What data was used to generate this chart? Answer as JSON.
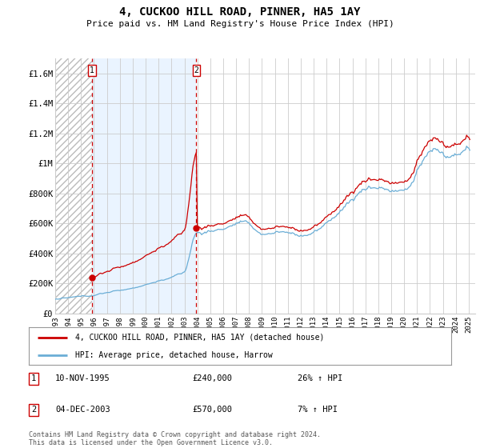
{
  "title": "4, CUCKOO HILL ROAD, PINNER, HA5 1AY",
  "subtitle": "Price paid vs. HM Land Registry's House Price Index (HPI)",
  "ylim": [
    0,
    1700000
  ],
  "yticks": [
    0,
    200000,
    400000,
    600000,
    800000,
    1000000,
    1200000,
    1400000,
    1600000
  ],
  "ytick_labels": [
    "£0",
    "£200K",
    "£400K",
    "£600K",
    "£800K",
    "£1M",
    "£1.2M",
    "£1.4M",
    "£1.6M"
  ],
  "xlim_start": 1993.0,
  "xlim_end": 2025.5,
  "sale1_date": 1995.86,
  "sale1_price": 240000,
  "sale1_label": "1",
  "sale1_text": "10-NOV-1995",
  "sale1_price_text": "£240,000",
  "sale1_hpi_text": "26% ↑ HPI",
  "sale2_date": 2003.92,
  "sale2_price": 570000,
  "sale2_label": "2",
  "sale2_text": "04-DEC-2003",
  "sale2_price_text": "£570,000",
  "sale2_hpi_text": "7% ↑ HPI",
  "hpi_color": "#6baed6",
  "price_color": "#cc0000",
  "vline_color": "#cc0000",
  "shade_color": "#ddeeff",
  "background_color": "#ffffff",
  "grid_color": "#cccccc",
  "legend_line1": "4, CUCKOO HILL ROAD, PINNER, HA5 1AY (detached house)",
  "legend_line2": "HPI: Average price, detached house, Harrow",
  "footnote": "Contains HM Land Registry data © Crown copyright and database right 2024.\nThis data is licensed under the Open Government Licence v3.0."
}
